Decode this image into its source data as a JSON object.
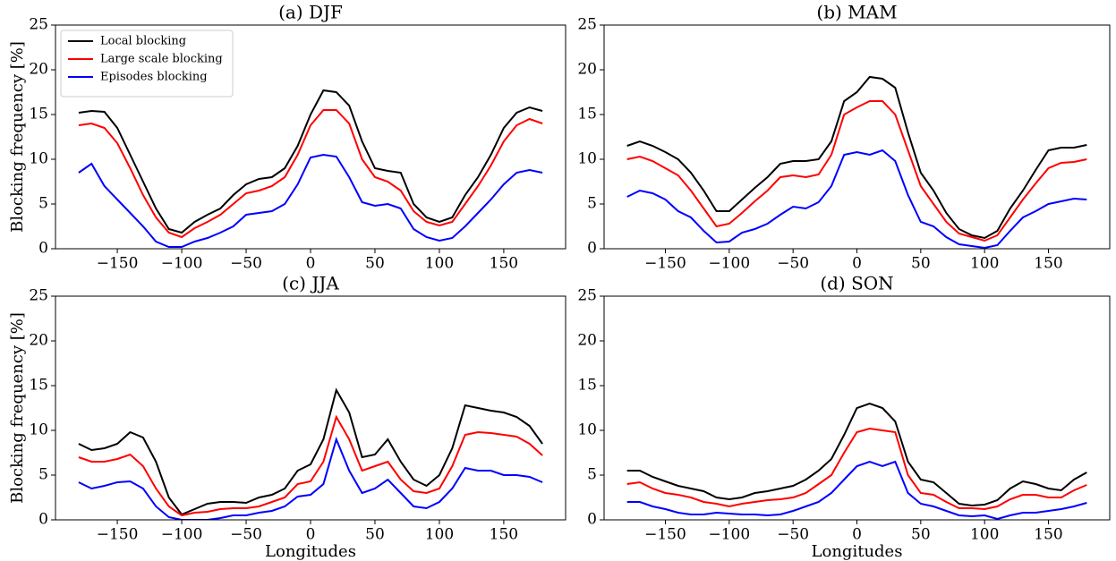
{
  "chart_data": [
    {
      "type": "line",
      "title": "(a) DJF",
      "ylabel": "Blocking frequency [%]",
      "legend": "upper left",
      "x": [
        -180,
        -170,
        -160,
        -150,
        -140,
        -130,
        -120,
        -110,
        -100,
        -90,
        -80,
        -70,
        -60,
        -50,
        -40,
        -30,
        -20,
        -10,
        0,
        10,
        20,
        30,
        40,
        50,
        60,
        70,
        80,
        90,
        100,
        110,
        120,
        130,
        140,
        150,
        160,
        170,
        180
      ],
      "series": [
        {
          "name": "Local blocking",
          "color": "#000000",
          "values": [
            15.2,
            15.4,
            15.3,
            13.5,
            10.5,
            7.5,
            4.5,
            2.2,
            1.8,
            3,
            3.8,
            4.5,
            6,
            7.2,
            7.8,
            8,
            9,
            11.5,
            15,
            17.7,
            17.5,
            16,
            12,
            9,
            8.7,
            8.5,
            5,
            3.5,
            3,
            3.5,
            6,
            8,
            10.5,
            13.5,
            15.2,
            15.8,
            15.4
          ]
        },
        {
          "name": "Large scale blocking",
          "color": "#ff0000",
          "values": [
            13.8,
            14,
            13.5,
            11.8,
            9,
            6,
            3.5,
            1.8,
            1.3,
            2.3,
            3,
            3.8,
            5,
            6.2,
            6.5,
            7,
            8,
            10.5,
            13.8,
            15.5,
            15.5,
            14,
            10,
            8,
            7.5,
            6.5,
            4.2,
            3,
            2.6,
            3,
            5,
            7,
            9.3,
            12,
            13.8,
            14.5,
            14
          ]
        },
        {
          "name": "Episodes blocking",
          "color": "#0000ff",
          "values": [
            8.5,
            9.5,
            7,
            5.5,
            4,
            2.5,
            0.8,
            0.2,
            0.2,
            0.8,
            1.2,
            1.8,
            2.5,
            3.8,
            4,
            4.2,
            5,
            7.2,
            10.2,
            10.5,
            10.3,
            8,
            5.2,
            4.8,
            5,
            4.5,
            2.2,
            1.3,
            0.9,
            1.2,
            2.5,
            4,
            5.5,
            7.2,
            8.5,
            8.8,
            8.5
          ]
        }
      ],
      "xlim": [
        -198,
        198
      ],
      "xticks": [
        {
          "value": -150,
          "label": "−150"
        },
        {
          "value": -100,
          "label": "−100"
        },
        {
          "value": -50,
          "label": "−50"
        },
        0,
        50,
        100,
        150
      ],
      "ylim": [
        0,
        25
      ],
      "yticks": [
        0,
        5,
        10,
        15,
        20,
        25
      ]
    },
    {
      "type": "line",
      "title": "(b) MAM",
      "x": [
        -180,
        -170,
        -160,
        -150,
        -140,
        -130,
        -120,
        -110,
        -100,
        -90,
        -80,
        -70,
        -60,
        -50,
        -40,
        -30,
        -20,
        -10,
        0,
        10,
        20,
        30,
        40,
        50,
        60,
        70,
        80,
        90,
        100,
        110,
        120,
        130,
        140,
        150,
        160,
        170,
        180
      ],
      "series": [
        {
          "color": "#000000",
          "values": [
            11.5,
            12,
            11.5,
            10.8,
            10,
            8.5,
            6.5,
            4.2,
            4.2,
            5.5,
            6.8,
            8,
            9.5,
            9.8,
            9.8,
            10,
            12,
            16.5,
            17.5,
            19.2,
            19,
            18,
            13,
            8.5,
            6.5,
            4,
            2.2,
            1.5,
            1.2,
            2,
            4.5,
            6.5,
            8.8,
            11,
            11.3,
            11.3,
            11.6
          ]
        },
        {
          "color": "#ff0000",
          "values": [
            10,
            10.3,
            9.8,
            9,
            8.2,
            6.5,
            4.5,
            2.5,
            2.8,
            4,
            5.3,
            6.5,
            8,
            8.2,
            8,
            8.3,
            10.5,
            15,
            15.8,
            16.5,
            16.5,
            15,
            11,
            7,
            5,
            3,
            1.7,
            1.3,
            0.9,
            1.5,
            3.5,
            5.5,
            7.3,
            9,
            9.6,
            9.7,
            10
          ]
        },
        {
          "color": "#0000ff",
          "values": [
            5.8,
            6.5,
            6.2,
            5.5,
            4.2,
            3.5,
            2,
            0.7,
            0.8,
            1.8,
            2.2,
            2.8,
            3.8,
            4.7,
            4.5,
            5.2,
            7,
            10.5,
            10.8,
            10.5,
            11,
            9.8,
            6,
            3,
            2.5,
            1.3,
            0.5,
            0.3,
            0.1,
            0.4,
            2,
            3.5,
            4.2,
            5,
            5.3,
            5.6,
            5.5
          ]
        }
      ],
      "xlim": [
        -198,
        198
      ],
      "xticks": [
        {
          "value": -150,
          "label": "−150"
        },
        {
          "value": -100,
          "label": "−100"
        },
        {
          "value": -50,
          "label": "−50"
        },
        0,
        50,
        100,
        150
      ],
      "ylim": [
        0,
        25
      ],
      "yticks": [
        0,
        5,
        10,
        15,
        20,
        25
      ]
    },
    {
      "type": "line",
      "title": "(c) JJA",
      "ylabel": "Blocking frequency [%]",
      "xlabel": "Longitudes",
      "x": [
        -180,
        -170,
        -160,
        -150,
        -140,
        -130,
        -120,
        -110,
        -100,
        -90,
        -80,
        -70,
        -60,
        -50,
        -40,
        -30,
        -20,
        -10,
        0,
        10,
        20,
        30,
        40,
        50,
        60,
        70,
        80,
        90,
        100,
        110,
        120,
        130,
        140,
        150,
        160,
        170,
        180
      ],
      "series": [
        {
          "color": "#000000",
          "values": [
            8.5,
            7.8,
            8,
            8.5,
            9.8,
            9.2,
            6.5,
            2.5,
            0.6,
            1.2,
            1.8,
            2,
            2,
            1.9,
            2.5,
            2.8,
            3.5,
            5.5,
            6.2,
            9,
            14.5,
            12,
            7,
            7.3,
            9,
            6.5,
            4.5,
            3.8,
            5,
            8,
            12.8,
            12.5,
            12.2,
            12,
            11.5,
            10.5,
            8.5
          ]
        },
        {
          "color": "#ff0000",
          "values": [
            7,
            6.5,
            6.5,
            6.8,
            7.3,
            6,
            3.5,
            1.5,
            0.5,
            0.8,
            0.9,
            1.2,
            1.3,
            1.3,
            1.5,
            2,
            2.5,
            4,
            4.3,
            6.5,
            11.5,
            9,
            5.5,
            6,
            6.5,
            4.5,
            3.2,
            3,
            3.5,
            6,
            9.5,
            9.8,
            9.7,
            9.5,
            9.3,
            8.5,
            7.2
          ]
        },
        {
          "color": "#0000ff",
          "values": [
            4.2,
            3.5,
            3.8,
            4.2,
            4.3,
            3.5,
            1.5,
            0.3,
            0,
            0,
            0,
            0.2,
            0.5,
            0.5,
            0.8,
            1,
            1.5,
            2.6,
            2.8,
            4,
            9,
            5.5,
            3,
            3.5,
            4.5,
            3,
            1.5,
            1.3,
            2,
            3.5,
            5.8,
            5.5,
            5.5,
            5,
            5,
            4.8,
            4.2
          ]
        }
      ],
      "xlim": [
        -198,
        198
      ],
      "xticks": [
        {
          "value": -150,
          "label": "−150"
        },
        {
          "value": -100,
          "label": "−100"
        },
        {
          "value": -50,
          "label": "−50"
        },
        0,
        50,
        100,
        150
      ],
      "ylim": [
        0,
        25
      ],
      "yticks": [
        0,
        5,
        10,
        15,
        20,
        25
      ]
    },
    {
      "type": "line",
      "title": "(d) SON",
      "xlabel": "Longitudes",
      "x": [
        -180,
        -170,
        -160,
        -150,
        -140,
        -130,
        -120,
        -110,
        -100,
        -90,
        -80,
        -70,
        -60,
        -50,
        -40,
        -30,
        -20,
        -10,
        0,
        10,
        20,
        30,
        40,
        50,
        60,
        70,
        80,
        90,
        100,
        110,
        120,
        130,
        140,
        150,
        160,
        170,
        180
      ],
      "series": [
        {
          "color": "#000000",
          "values": [
            5.5,
            5.5,
            4.8,
            4.3,
            3.8,
            3.5,
            3.2,
            2.5,
            2.3,
            2.5,
            3,
            3.2,
            3.5,
            3.8,
            4.5,
            5.5,
            6.8,
            9.5,
            12.5,
            13,
            12.5,
            11,
            6.5,
            4.5,
            4.2,
            3,
            1.8,
            1.6,
            1.7,
            2.2,
            3.5,
            4.3,
            4,
            3.5,
            3.3,
            4.5,
            5.3
          ]
        },
        {
          "color": "#ff0000",
          "values": [
            4,
            4.2,
            3.5,
            3,
            2.8,
            2.5,
            2,
            1.8,
            1.5,
            1.8,
            2,
            2.2,
            2.3,
            2.5,
            3,
            4,
            5,
            7.5,
            9.8,
            10.2,
            10,
            9.8,
            5,
            3,
            2.8,
            2,
            1.3,
            1.3,
            1.2,
            1.5,
            2.3,
            2.8,
            2.8,
            2.5,
            2.5,
            3.3,
            3.9
          ]
        },
        {
          "color": "#0000ff",
          "values": [
            2,
            2,
            1.5,
            1.2,
            0.8,
            0.6,
            0.6,
            0.8,
            0.7,
            0.6,
            0.6,
            0.5,
            0.6,
            1,
            1.5,
            2,
            3,
            4.5,
            6,
            6.5,
            6,
            6.5,
            3,
            1.8,
            1.5,
            1,
            0.5,
            0.4,
            0.5,
            0.1,
            0.5,
            0.8,
            0.8,
            1,
            1.2,
            1.5,
            1.9
          ]
        }
      ],
      "xlim": [
        -198,
        198
      ],
      "xticks": [
        {
          "value": -150,
          "label": "−150"
        },
        {
          "value": -100,
          "label": "−100"
        },
        {
          "value": -50,
          "label": "−50"
        },
        0,
        50,
        100,
        150
      ],
      "ylim": [
        0,
        25
      ],
      "yticks": [
        0,
        5,
        10,
        15,
        20,
        25
      ]
    }
  ]
}
